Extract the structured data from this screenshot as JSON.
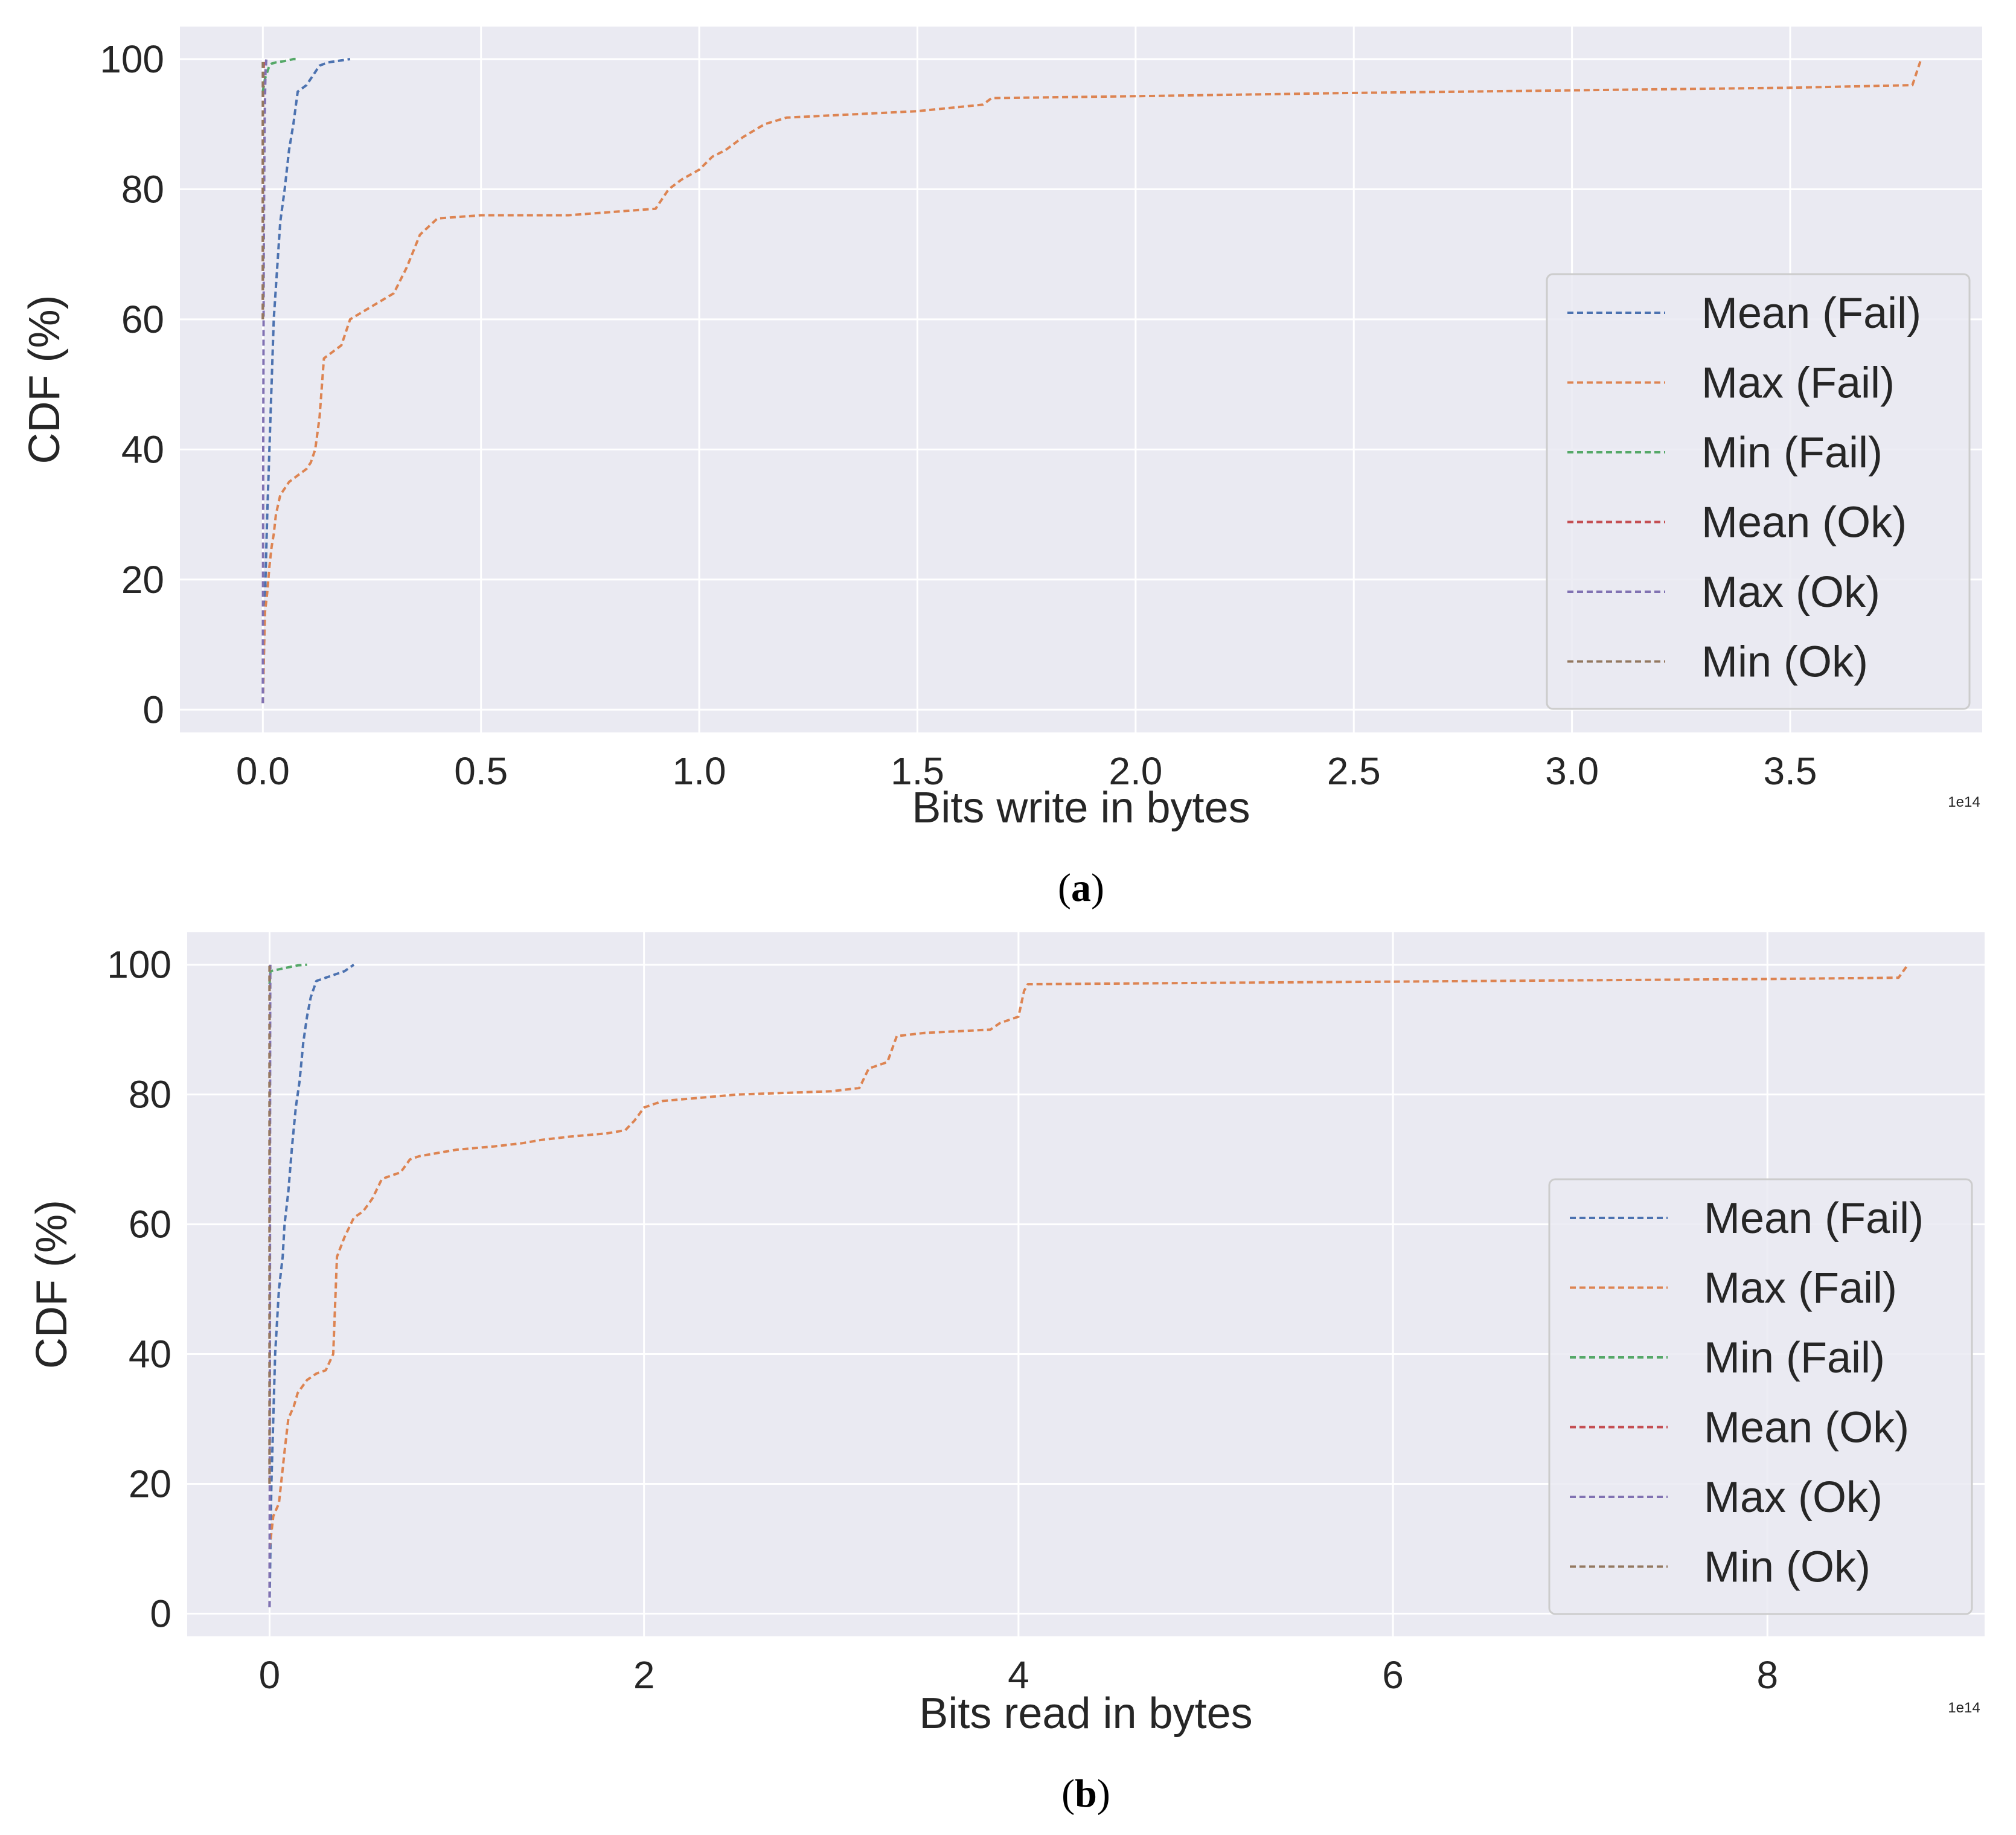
{
  "chart_data": [
    {
      "type": "line",
      "panel": "(a)",
      "caption_open": "(",
      "caption_letter": "a",
      "caption_close": ")",
      "xlabel": "Bits write in bytes",
      "ylabel": "CDF (%)",
      "x_offset_text": "1e14",
      "xlim": [
        -0.19,
        3.94
      ],
      "ylim": [
        -3.5,
        105
      ],
      "xticks": [
        0.0,
        0.5,
        1.0,
        1.5,
        2.0,
        2.5,
        3.0,
        3.5
      ],
      "xtick_labels": [
        "0.0",
        "0.5",
        "1.0",
        "1.5",
        "2.0",
        "2.5",
        "3.0",
        "3.5"
      ],
      "yticks": [
        0,
        20,
        40,
        60,
        80,
        100
      ],
      "ytick_labels": [
        "0",
        "20",
        "40",
        "60",
        "80",
        "100"
      ],
      "grid": true,
      "legend_position": "center-right",
      "series": [
        {
          "name": "Mean (Fail)",
          "color": "#4c72b0",
          "x": [
            0.0,
            0.003,
            0.006,
            0.01,
            0.015,
            0.02,
            0.025,
            0.03,
            0.035,
            0.04,
            0.05,
            0.06,
            0.07,
            0.08,
            0.1,
            0.12,
            0.13,
            0.15,
            0.2
          ],
          "y": [
            1,
            10,
            20,
            30,
            40,
            50,
            60,
            65,
            70,
            75,
            80,
            86,
            90,
            95,
            96,
            98,
            99,
            99.5,
            100
          ]
        },
        {
          "name": "Max (Fail)",
          "color": "#dd8452",
          "x": [
            0.0,
            0.003,
            0.005,
            0.01,
            0.015,
            0.02,
            0.025,
            0.03,
            0.04,
            0.05,
            0.06,
            0.08,
            0.1,
            0.11,
            0.12,
            0.13,
            0.14,
            0.16,
            0.18,
            0.2,
            0.25,
            0.3,
            0.33,
            0.36,
            0.4,
            0.5,
            0.7,
            0.8,
            0.9,
            0.93,
            0.96,
            1.0,
            1.03,
            1.06,
            1.1,
            1.15,
            1.2,
            1.5,
            1.65,
            1.67,
            2.0,
            2.5,
            3.0,
            3.5,
            3.78,
            3.8
          ],
          "y": [
            1,
            10,
            15,
            18,
            22,
            25,
            27,
            30,
            33,
            34,
            35,
            36,
            37,
            38,
            40,
            45,
            54,
            55,
            56,
            60,
            62,
            64,
            68,
            73,
            75.5,
            76,
            76,
            76.5,
            77,
            80,
            81.5,
            83,
            85,
            86,
            88,
            90,
            91,
            92,
            93,
            94,
            94.3,
            94.8,
            95.2,
            95.6,
            96,
            100
          ]
        },
        {
          "name": "Min (Fail)",
          "color": "#55a868",
          "x": [
            0.0,
            0.005,
            0.01,
            0.015,
            0.02,
            0.03,
            0.05,
            0.07,
            0.08
          ],
          "y": [
            95,
            97,
            98,
            99,
            99.3,
            99.5,
            99.7,
            100,
            100
          ]
        },
        {
          "name": "Mean (Ok)",
          "color": "#c44e52",
          "x": [
            0.0,
            0.0,
            0.001,
            0.002,
            0.003
          ],
          "y": [
            60,
            90,
            97,
            99,
            100
          ]
        },
        {
          "name": "Max (Ok)",
          "color": "#8172b2",
          "x": [
            0.0,
            0.001,
            0.002,
            0.004,
            0.006,
            0.008
          ],
          "y": [
            1,
            40,
            70,
            90,
            98,
            100
          ]
        },
        {
          "name": "Min (Ok)",
          "color": "#937860",
          "x": [
            0.0,
            0.0
          ],
          "y": [
            60,
            100
          ]
        }
      ]
    },
    {
      "type": "line",
      "panel": "(b)",
      "caption_open": "(",
      "caption_letter": "b",
      "caption_close": ")",
      "xlabel": "Bits read in bytes",
      "ylabel": "CDF (%)",
      "x_offset_text": "1e14",
      "xlim": [
        -0.44,
        9.16
      ],
      "ylim": [
        -3.5,
        105
      ],
      "xticks": [
        0,
        2,
        4,
        6,
        8
      ],
      "xtick_labels": [
        "0",
        "2",
        "4",
        "6",
        "8"
      ],
      "yticks": [
        0,
        20,
        40,
        60,
        80,
        100
      ],
      "ytick_labels": [
        "0",
        "20",
        "40",
        "60",
        "80",
        "100"
      ],
      "grid": true,
      "legend_position": "center-right",
      "series": [
        {
          "name": "Mean (Fail)",
          "color": "#4c72b0",
          "x": [
            0.0,
            0.01,
            0.02,
            0.03,
            0.05,
            0.07,
            0.08,
            0.1,
            0.12,
            0.14,
            0.16,
            0.18,
            0.2,
            0.22,
            0.25,
            0.3,
            0.4,
            0.45
          ],
          "y": [
            1,
            20,
            30,
            40,
            50,
            55,
            60,
            65,
            72,
            78,
            82,
            88,
            92,
            95,
            97.5,
            98,
            99,
            100
          ]
        },
        {
          "name": "Max (Fail)",
          "color": "#dd8452",
          "x": [
            0.0,
            0.02,
            0.05,
            0.08,
            0.1,
            0.13,
            0.15,
            0.2,
            0.25,
            0.3,
            0.34,
            0.36,
            0.4,
            0.45,
            0.5,
            0.55,
            0.6,
            0.7,
            0.75,
            0.8,
            0.9,
            1.0,
            1.2,
            1.35,
            1.45,
            1.6,
            1.8,
            1.9,
            1.95,
            2.0,
            2.1,
            2.3,
            2.5,
            3.0,
            3.15,
            3.2,
            3.3,
            3.35,
            3.5,
            3.85,
            3.9,
            4.0,
            4.03,
            4.05,
            5.0,
            6.0,
            7.0,
            8.0,
            8.7,
            8.75
          ],
          "y": [
            10,
            15,
            17,
            25,
            30,
            32,
            34,
            36,
            37,
            37.5,
            40,
            55,
            58,
            61,
            62,
            64,
            67,
            68,
            70,
            70.5,
            71,
            71.5,
            72,
            72.5,
            73,
            73.5,
            74,
            74.5,
            76,
            78,
            79,
            79.5,
            80,
            80.5,
            81,
            84,
            85,
            89,
            89.5,
            90,
            91,
            92,
            96,
            97,
            97.2,
            97.4,
            97.6,
            97.8,
            98,
            100
          ]
        },
        {
          "name": "Min (Fail)",
          "color": "#55a868",
          "x": [
            0.0,
            0.005,
            0.02,
            0.05,
            0.1,
            0.15,
            0.2
          ],
          "y": [
            97,
            99,
            99.1,
            99.3,
            99.6,
            99.9,
            100
          ]
        },
        {
          "name": "Mean (Ok)",
          "color": "#c44e52",
          "x": [
            0.0,
            0.0,
            0.001
          ],
          "y": [
            20,
            99,
            100
          ]
        },
        {
          "name": "Max (Ok)",
          "color": "#8172b2",
          "x": [
            0.0,
            0.001,
            0.002,
            0.003,
            0.004
          ],
          "y": [
            1,
            20,
            50,
            90,
            100
          ]
        },
        {
          "name": "Min (Ok)",
          "color": "#937860",
          "x": [
            0.0,
            0.0
          ],
          "y": [
            20,
            100
          ]
        }
      ]
    }
  ]
}
